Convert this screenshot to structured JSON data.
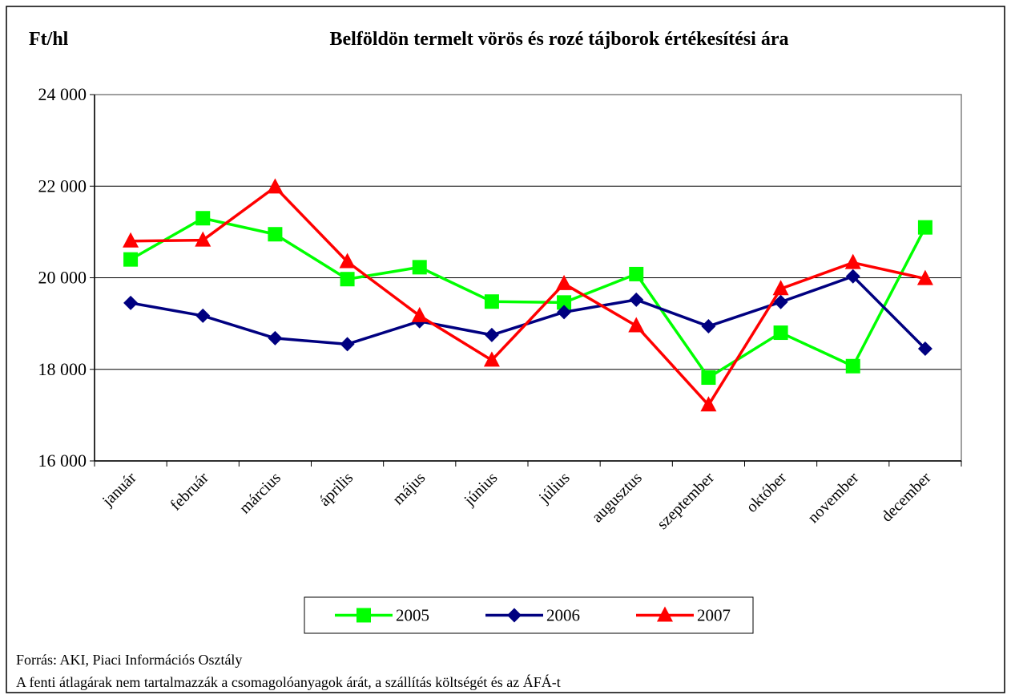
{
  "chart_data": {
    "type": "line",
    "title": "Belföldön termelt vörös és rozé tájborok értékesítési ára",
    "y_label": "Ft/hl",
    "categories": [
      "január",
      "február",
      "március",
      "április",
      "május",
      "június",
      "július",
      "augusztus",
      "szeptember",
      "október",
      "november",
      "december"
    ],
    "series": [
      {
        "name": "2005",
        "color": "#00ff00",
        "marker": "square",
        "values": [
          20400,
          21300,
          20950,
          19970,
          20230,
          19480,
          19460,
          20080,
          17820,
          18800,
          18070,
          21100
        ]
      },
      {
        "name": "2006",
        "color": "#000080",
        "marker": "diamond",
        "values": [
          19450,
          19170,
          18680,
          18550,
          19050,
          18750,
          19250,
          19520,
          18940,
          19470,
          20030,
          18450
        ]
      },
      {
        "name": "2007",
        "color": "#ff0000",
        "marker": "triangle",
        "values": [
          20800,
          20820,
          21980,
          20350,
          19170,
          18200,
          19870,
          18950,
          17220,
          19760,
          20330,
          19980
        ]
      }
    ],
    "ylim": [
      16000,
      24000
    ],
    "yticks": [
      {
        "value": 16000,
        "label": "16 000"
      },
      {
        "value": 18000,
        "label": "18 000"
      },
      {
        "value": 20000,
        "label": "20 000"
      },
      {
        "value": 22000,
        "label": "22 000"
      },
      {
        "value": 24000,
        "label": "24 000"
      }
    ],
    "grid": true,
    "legend": "bottom",
    "notes": [
      "Forrás: AKI, Piaci Információs Osztály",
      "A fenti átlagárak nem tartalmazzák a csomagolóanyagok árát, a szállítás költségét és az ÁFÁ-t"
    ]
  }
}
